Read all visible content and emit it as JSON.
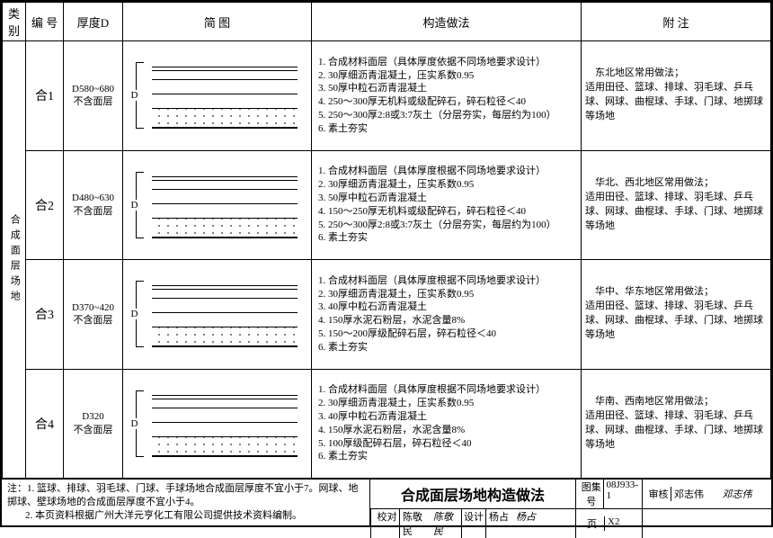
{
  "headers": {
    "category": "类别",
    "code": "编 号",
    "thickness": "厚度D",
    "figure": "简  图",
    "method": "构造做法",
    "note": "附  注"
  },
  "category_label": "合成面层场地",
  "rows": [
    {
      "code": "合1",
      "thickness": "D580~680\n不含面层",
      "d_label": "D",
      "steps": [
        "合成材料面层（具体厚度依据不同场地要求设计）",
        "30厚细沥青混凝土，压实系数0.95",
        "50厚中粒石沥青混凝土",
        "250～300厚无机料或级配碎石，碎石粒径＜40",
        "250～300厚2:8或3:7灰土（分层夯实，每层约为100）",
        "素土夯实"
      ],
      "note": "　东北地区常用做法；\n适用田径、篮球、排球、羽毛球、乒乓球、网球、曲棍球、手球、门球、地掷球等场地"
    },
    {
      "code": "合2",
      "thickness": "D480~630\n不含面层",
      "d_label": "D",
      "steps": [
        "合成材料面层（具体厚度根据不同场地要求设计）",
        "30厚细沥青混凝土，压实系数0.95",
        "50厚中粒石沥青混凝土",
        "150～250厚无机料或级配碎石，碎石粒径＜40",
        "250～300厚2:8或3:7灰土（分层夯实，每层约为100）",
        "素土夯实"
      ],
      "note": "　华北、西北地区常用做法；\n适用田径、篮球、排球、羽毛球、乒乓球、网球、曲棍球、手球、门球、地掷球等场地"
    },
    {
      "code": "合3",
      "thickness": "D370~420\n不含面层",
      "d_label": "D",
      "steps": [
        "合成材料面层（具体厚度根据不同场地要求设计）",
        "30厚细沥青混凝土，压实系数0.95",
        "40厚中粒石沥青混凝土",
        "150厚水泥石粉层，水泥含量8%",
        "150～200厚级配碎石层，碎石粒径＜40",
        "素土夯实"
      ],
      "note": "　华中、华东地区常用做法；\n适用田径、篮球、排球、羽毛球、乒乓球、网球、曲棍球、手球、门球、地掷球等场地"
    },
    {
      "code": "合4",
      "thickness": "D320\n不含面层",
      "d_label": "D",
      "steps": [
        "合成材料面层（具体厚度根据不同场地要求设计）",
        "30厚细沥青混凝土，压实系数0.95",
        "40厚中粒石沥青混凝土",
        "150厚水泥石粉层，水泥含量8%",
        "100厚级配碎石层，碎石粒径＜40",
        "素土夯实"
      ],
      "note": "　华南、西南地区常用做法；\n适用田径、篮球、排球、羽毛球、乒乓球、网球、曲棍球、手球、门球、地掷球等场地"
    }
  ],
  "footnotes": [
    "篮球、排球、羽毛球、门球、手球场地合成面层厚度不宜小于7。网球、地掷球、壁球场地的合成面层厚度不宜小于4。",
    "本页资料根据广州大洋元亨化工有限公司提供技术资料编制。"
  ],
  "footnotes_label": "注：",
  "titleblock": {
    "title": "合成面层场地构造做法",
    "atlas_label": "图集号",
    "atlas_value": "08J933-1",
    "page_label": "页",
    "page_value": "X2",
    "review_label": "审核",
    "review_name": "邓志伟",
    "review_sig": "邓志伟",
    "check_label": "校对",
    "check_name": "陈敬民",
    "check_sig": "陈敬民",
    "design_label": "设计",
    "design_name": "杨占",
    "design_sig": "杨占"
  },
  "colors": {
    "border": "#000000",
    "background": "#ffffff",
    "text": "#000000",
    "dots": "#555555"
  }
}
